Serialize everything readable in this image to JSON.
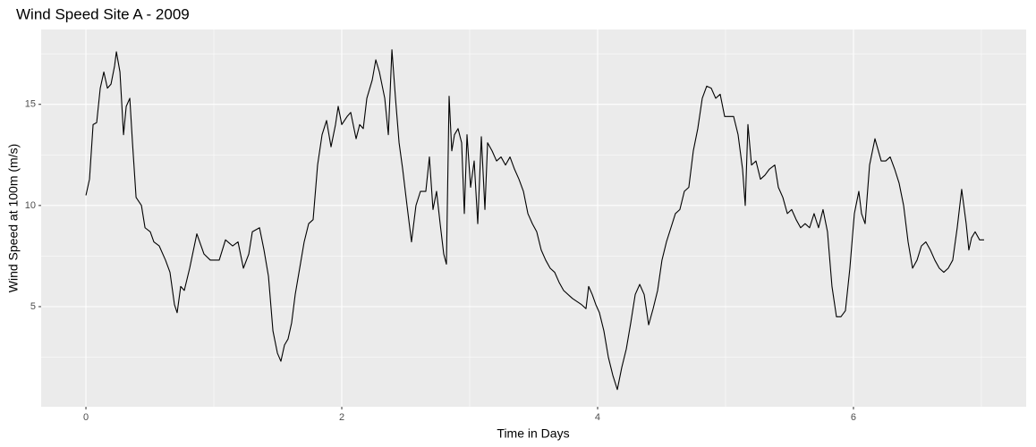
{
  "chart_data": {
    "type": "line",
    "title": "Wind Speed Site A - 2009",
    "x_label": "Time in Days",
    "y_label": "Wind Speed at 100m (m/s)",
    "color": "#000000",
    "grid": true,
    "xlim": [
      -0.35,
      7.35
    ],
    "xticks": [
      0,
      2,
      4,
      6
    ],
    "minor_xticks": [
      1,
      3,
      5,
      7
    ],
    "ylim": [
      0.05,
      18.7
    ],
    "yticks": [
      5,
      10,
      15
    ],
    "minor_yticks": [
      2.5,
      7.5,
      12.5,
      17.5
    ],
    "x": [
      0.0,
      0.028,
      0.056,
      0.084,
      0.112,
      0.14,
      0.168,
      0.196,
      0.224,
      0.238,
      0.266,
      0.294,
      0.315,
      0.343,
      0.364,
      0.392,
      0.434,
      0.462,
      0.503,
      0.531,
      0.573,
      0.622,
      0.657,
      0.692,
      0.713,
      0.741,
      0.769,
      0.811,
      0.867,
      0.923,
      0.972,
      1.042,
      1.091,
      1.147,
      1.189,
      1.231,
      1.273,
      1.301,
      1.357,
      1.392,
      1.427,
      1.462,
      1.497,
      1.524,
      1.552,
      1.58,
      1.608,
      1.636,
      1.671,
      1.706,
      1.741,
      1.776,
      1.811,
      1.846,
      1.881,
      1.916,
      1.951,
      1.972,
      2.0,
      2.042,
      2.07,
      2.112,
      2.14,
      2.168,
      2.196,
      2.238,
      2.266,
      2.294,
      2.336,
      2.364,
      2.392,
      2.42,
      2.448,
      2.476,
      2.51,
      2.545,
      2.58,
      2.615,
      2.657,
      2.685,
      2.713,
      2.741,
      2.769,
      2.797,
      2.818,
      2.839,
      2.86,
      2.881,
      2.909,
      2.937,
      2.958,
      2.979,
      3.007,
      3.035,
      3.063,
      3.091,
      3.119,
      3.14,
      3.175,
      3.21,
      3.245,
      3.28,
      3.315,
      3.35,
      3.385,
      3.42,
      3.455,
      3.49,
      3.524,
      3.559,
      3.594,
      3.629,
      3.664,
      3.699,
      3.734,
      3.804,
      3.874,
      3.909,
      3.93,
      3.958,
      3.986,
      4.014,
      4.049,
      4.084,
      4.119,
      4.154,
      4.189,
      4.224,
      4.259,
      4.294,
      4.329,
      4.364,
      4.399,
      4.434,
      4.469,
      4.503,
      4.538,
      4.573,
      4.608,
      4.643,
      4.678,
      4.713,
      4.748,
      4.783,
      4.818,
      4.853,
      4.888,
      4.923,
      4.958,
      4.993,
      5.028,
      5.063,
      5.098,
      5.133,
      5.154,
      5.175,
      5.203,
      5.238,
      5.273,
      5.308,
      5.343,
      5.385,
      5.413,
      5.448,
      5.483,
      5.517,
      5.552,
      5.587,
      5.622,
      5.657,
      5.692,
      5.727,
      5.762,
      5.797,
      5.832,
      5.867,
      5.902,
      5.937,
      5.972,
      6.007,
      6.042,
      6.063,
      6.091,
      6.126,
      6.168,
      6.217,
      6.252,
      6.287,
      6.322,
      6.357,
      6.392,
      6.427,
      6.462,
      6.497,
      6.531,
      6.566,
      6.601,
      6.636,
      6.671,
      6.706,
      6.741,
      6.776,
      6.811,
      6.846,
      6.881,
      6.902,
      6.923,
      6.951,
      6.986,
      7.021
    ],
    "values": [
      10.5,
      11.3,
      14.0,
      14.1,
      15.8,
      16.6,
      15.8,
      16.0,
      16.9,
      17.6,
      16.6,
      13.5,
      14.9,
      15.3,
      13.1,
      10.4,
      10.0,
      8.9,
      8.7,
      8.2,
      8.0,
      7.3,
      6.7,
      5.1,
      4.7,
      6.0,
      5.8,
      6.9,
      8.6,
      7.6,
      7.3,
      7.3,
      8.3,
      8.0,
      8.2,
      6.9,
      7.6,
      8.7,
      8.9,
      7.8,
      6.5,
      3.8,
      2.7,
      2.3,
      3.1,
      3.4,
      4.2,
      5.6,
      6.9,
      8.2,
      9.1,
      9.3,
      12.0,
      13.5,
      14.2,
      12.9,
      14.0,
      14.9,
      14.0,
      14.4,
      14.6,
      13.3,
      14.0,
      13.8,
      15.3,
      16.2,
      17.2,
      16.6,
      15.3,
      13.5,
      17.7,
      15.3,
      13.1,
      11.8,
      10.0,
      8.2,
      10.0,
      10.7,
      10.7,
      12.4,
      9.8,
      10.7,
      9.1,
      7.6,
      7.1,
      15.4,
      12.7,
      13.5,
      13.8,
      13.1,
      9.6,
      13.5,
      10.9,
      12.2,
      9.1,
      13.4,
      9.8,
      13.1,
      12.7,
      12.2,
      12.4,
      12.0,
      12.4,
      11.8,
      11.3,
      10.7,
      9.6,
      9.1,
      8.7,
      7.8,
      7.3,
      6.9,
      6.7,
      6.2,
      5.8,
      5.4,
      5.1,
      4.9,
      6.0,
      5.6,
      5.1,
      4.7,
      3.8,
      2.5,
      1.6,
      0.9,
      2.0,
      2.9,
      4.2,
      5.6,
      6.1,
      5.6,
      4.1,
      4.9,
      5.8,
      7.3,
      8.2,
      8.9,
      9.6,
      9.8,
      10.7,
      10.9,
      12.7,
      13.8,
      15.3,
      15.9,
      15.8,
      15.3,
      15.5,
      14.4,
      14.4,
      14.4,
      13.5,
      11.8,
      10.0,
      14.0,
      12.0,
      12.2,
      11.3,
      11.5,
      11.8,
      12.0,
      10.9,
      10.4,
      9.6,
      9.8,
      9.3,
      8.9,
      9.1,
      8.9,
      9.6,
      8.9,
      9.8,
      8.7,
      6.0,
      4.5,
      4.5,
      4.8,
      6.9,
      9.6,
      10.7,
      9.6,
      9.1,
      12.0,
      13.3,
      12.2,
      12.2,
      12.4,
      11.8,
      11.1,
      10.0,
      8.2,
      6.9,
      7.3,
      8.0,
      8.2,
      7.8,
      7.3,
      6.9,
      6.7,
      6.9,
      7.3,
      8.9,
      10.8,
      9.1,
      7.8,
      8.4,
      8.7,
      8.3,
      8.3
    ]
  }
}
